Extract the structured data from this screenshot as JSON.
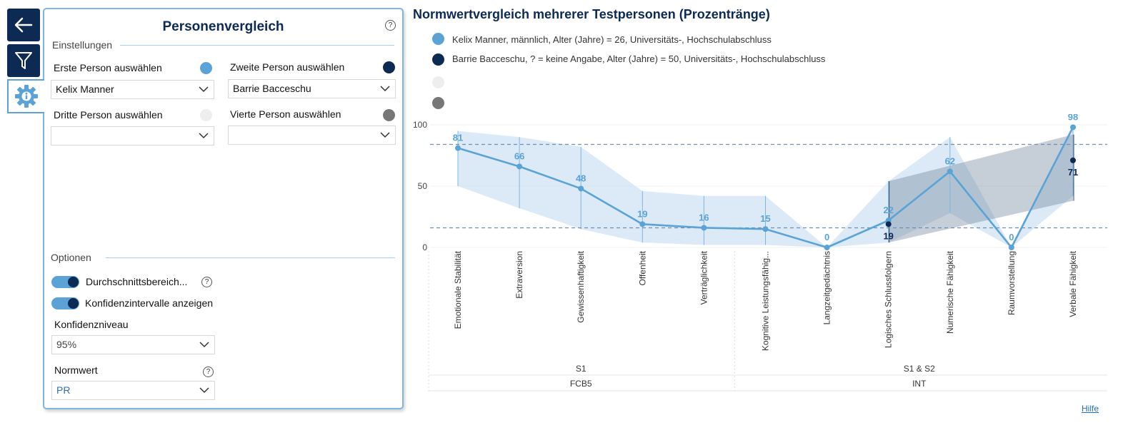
{
  "nav": {
    "back_icon": "back-arrow-icon",
    "filter_icon": "filter-icon",
    "settings_icon": "gear-info-icon"
  },
  "panel": {
    "title": "Personenvergleich",
    "help": "?",
    "settings_section": "Einstellungen",
    "person1_label": "Erste Person auswählen",
    "person1_value": "Kelix Manner",
    "person1_color": "#5ba3d6",
    "person2_label": "Zweite Person auswählen",
    "person2_value": "Barrie Bacceschu",
    "person2_color": "#0c2a54",
    "person3_label": "Dritte Person auswählen",
    "person3_value": "",
    "person3_color": "#eeeeee",
    "person4_label": "Vierte Person auswählen",
    "person4_value": "",
    "person4_color": "#777777",
    "options_section": "Optionen",
    "toggle_average_label": "Durchschnittsbereich...",
    "toggle_average_on": true,
    "toggle_confidence_label": "Konfidenzintervalle anzeigen",
    "toggle_confidence_on": true,
    "confidence_label": "Konfidenzniveau",
    "confidence_value": "95%",
    "normwert_label": "Normwert",
    "normwert_value": "PR"
  },
  "chart_data": {
    "type": "line",
    "title": "Normwertvergleich mehrerer Testpersonen (Prozentränge)",
    "categories": [
      "Emotionale Stabilität",
      "Extraversion",
      "Gewissenhaftigkeit",
      "Offenheit",
      "Verträglichkeit",
      "Kognitive Leistungsfähig...",
      "Langzeitgedächtnis",
      "Logisches Schlussfolgern",
      "Numerische Fähigkeit",
      "Raumvorstellung",
      "Verbale Fähigkeit"
    ],
    "ylim": [
      0,
      100
    ],
    "yticks": [
      0,
      50,
      100
    ],
    "average_range": [
      16,
      84
    ],
    "groups_level1": [
      {
        "label": "S1",
        "from": 0,
        "to": 4
      },
      {
        "label": "S1 & S2",
        "from": 5,
        "to": 10
      }
    ],
    "groups_level2": [
      {
        "label": "FCB5",
        "from": 0,
        "to": 4
      },
      {
        "label": "INT",
        "from": 5,
        "to": 10
      }
    ],
    "series": [
      {
        "name": "Kelix Manner, männlich, Alter (Jahre) = 26, Universitäts-, Hochschulabschluss",
        "color": "#5ba3d6",
        "values": [
          81,
          66,
          48,
          19,
          16,
          15,
          0,
          22,
          62,
          0,
          98
        ],
        "ci_low": [
          50,
          32,
          15,
          4,
          2,
          2,
          0,
          4,
          28,
          0,
          42
        ],
        "ci_high": [
          95,
          90,
          82,
          46,
          42,
          42,
          0,
          54,
          90,
          0,
          100
        ]
      },
      {
        "name": "Barrie Bacceschu, ? = keine Angabe, Alter (Jahre) = 50, Universitäts-, Hochschulabschluss",
        "color": "#0c2a54",
        "points": [
          {
            "index": 7,
            "value": 19
          },
          {
            "index": 10,
            "value": 71
          }
        ],
        "ci_low": [
          4,
          38
        ],
        "ci_high": [
          54,
          92
        ]
      }
    ],
    "legend_extra_colors": [
      "#eeeeee",
      "#777777"
    ]
  },
  "footer": {
    "help_link": "Hilfe"
  }
}
